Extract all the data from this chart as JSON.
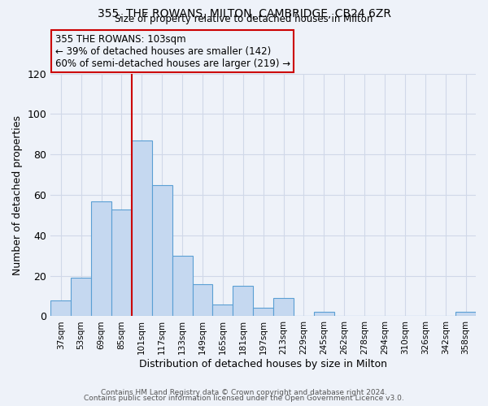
{
  "title": "355, THE ROWANS, MILTON, CAMBRIDGE, CB24 6ZR",
  "subtitle": "Size of property relative to detached houses in Milton",
  "xlabel": "Distribution of detached houses by size in Milton",
  "ylabel": "Number of detached properties",
  "bin_labels": [
    "37sqm",
    "53sqm",
    "69sqm",
    "85sqm",
    "101sqm",
    "117sqm",
    "133sqm",
    "149sqm",
    "165sqm",
    "181sqm",
    "197sqm",
    "213sqm",
    "229sqm",
    "245sqm",
    "262sqm",
    "278sqm",
    "294sqm",
    "310sqm",
    "326sqm",
    "342sqm",
    "358sqm"
  ],
  "bar_heights": [
    8,
    19,
    57,
    53,
    87,
    65,
    30,
    16,
    6,
    15,
    4,
    9,
    0,
    2,
    0,
    0,
    0,
    0,
    0,
    0,
    2
  ],
  "bar_color": "#c5d8f0",
  "bar_edge_color": "#5a9fd4",
  "grid_color": "#d0d8e8",
  "bg_color": "#eef2f9",
  "vline_color": "#cc0000",
  "vline_index": 4,
  "annotation_title": "355 THE ROWANS: 103sqm",
  "annotation_line1": "← 39% of detached houses are smaller (142)",
  "annotation_line2": "60% of semi-detached houses are larger (219) →",
  "annotation_box_color": "#cc0000",
  "ylim": [
    0,
    120
  ],
  "yticks": [
    0,
    20,
    40,
    60,
    80,
    100,
    120
  ],
  "footer1": "Contains HM Land Registry data © Crown copyright and database right 2024.",
  "footer2": "Contains public sector information licensed under the Open Government Licence v3.0."
}
